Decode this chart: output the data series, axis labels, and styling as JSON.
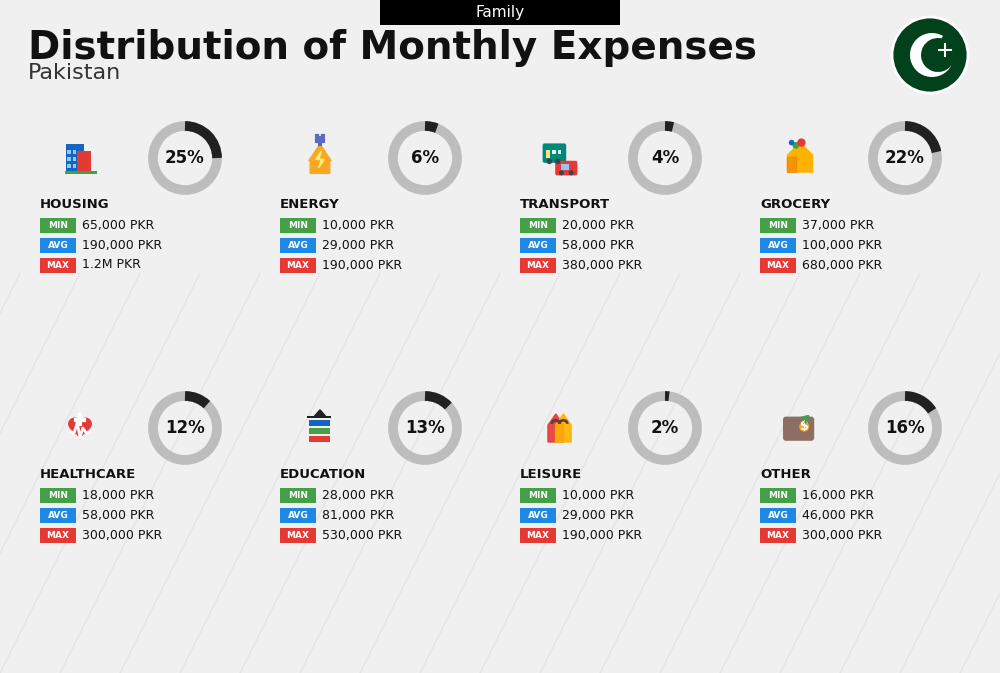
{
  "title": "Distribution of Monthly Expenses",
  "subtitle": "Pakistan",
  "header_label": "Family",
  "bg_color": "#f0f0f0",
  "categories": [
    {
      "name": "HOUSING",
      "pct": 25,
      "col": 0,
      "row": 0,
      "min": "65,000 PKR",
      "avg": "190,000 PKR",
      "max": "1.2M PKR",
      "icon_color": "#1565C0"
    },
    {
      "name": "ENERGY",
      "pct": 6,
      "col": 1,
      "row": 0,
      "min": "10,000 PKR",
      "avg": "29,000 PKR",
      "max": "190,000 PKR",
      "icon_color": "#F9A825"
    },
    {
      "name": "TRANSPORT",
      "pct": 4,
      "col": 2,
      "row": 0,
      "min": "20,000 PKR",
      "avg": "58,000 PKR",
      "max": "380,000 PKR",
      "icon_color": "#00897B"
    },
    {
      "name": "GROCERY",
      "pct": 22,
      "col": 3,
      "row": 0,
      "min": "37,000 PKR",
      "avg": "100,000 PKR",
      "max": "680,000 PKR",
      "icon_color": "#F57C00"
    },
    {
      "name": "HEALTHCARE",
      "pct": 12,
      "col": 0,
      "row": 1,
      "min": "18,000 PKR",
      "avg": "58,000 PKR",
      "max": "300,000 PKR",
      "icon_color": "#E53935"
    },
    {
      "name": "EDUCATION",
      "pct": 13,
      "col": 1,
      "row": 1,
      "min": "28,000 PKR",
      "avg": "81,000 PKR",
      "max": "530,000 PKR",
      "icon_color": "#1565C0"
    },
    {
      "name": "LEISURE",
      "pct": 2,
      "col": 2,
      "row": 1,
      "min": "10,000 PKR",
      "avg": "29,000 PKR",
      "max": "190,000 PKR",
      "icon_color": "#E53935"
    },
    {
      "name": "OTHER",
      "pct": 16,
      "col": 3,
      "row": 1,
      "min": "16,000 PKR",
      "avg": "46,000 PKR",
      "max": "300,000 PKR",
      "icon_color": "#795548"
    }
  ],
  "min_color": "#43A047",
  "avg_color": "#1E88E5",
  "max_color": "#E53935",
  "ring_active_color": "#212121",
  "ring_inactive_color": "#BDBDBD",
  "pakistan_flag_green": "#01411C",
  "title_color": "#111111",
  "subtitle_color": "#333333"
}
